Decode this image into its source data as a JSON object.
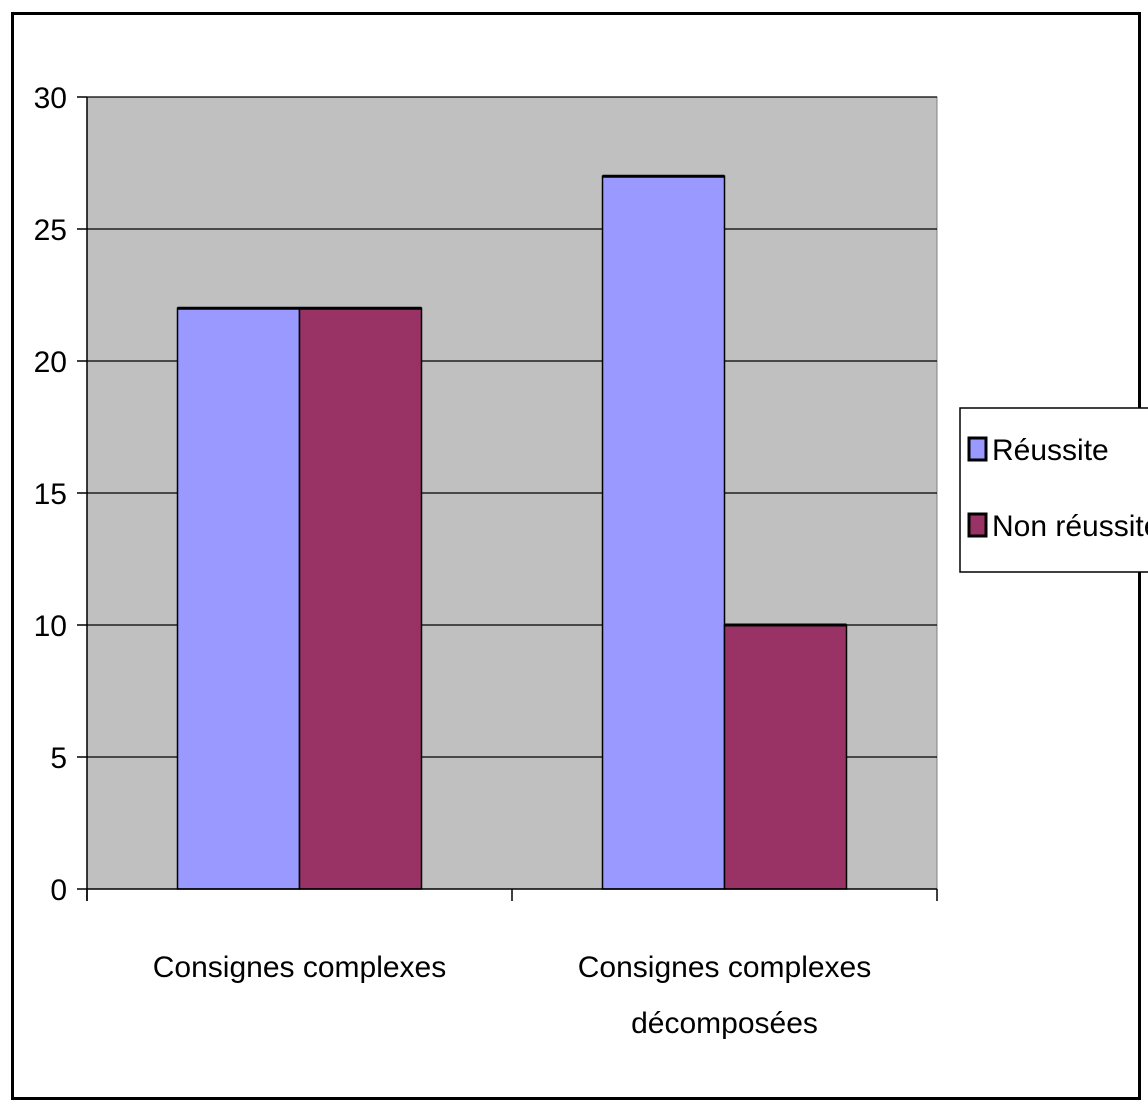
{
  "chart_data": {
    "type": "bar",
    "title": "",
    "xlabel": "",
    "ylabel": "",
    "categories": [
      [
        "Consignes complexes"
      ],
      [
        "Consignes complexes",
        "décomposées"
      ]
    ],
    "series": [
      {
        "name": "Réussite",
        "values": [
          22,
          27
        ],
        "color": "#9999ff"
      },
      {
        "name": "Non réussite",
        "values": [
          22,
          10
        ],
        "color": "#993366"
      }
    ],
    "ylim": [
      0,
      30
    ],
    "yticks": [
      0,
      5,
      10,
      15,
      20,
      25,
      30
    ],
    "grid": true,
    "plot_background": "#c0c0c0",
    "legend": "right"
  }
}
